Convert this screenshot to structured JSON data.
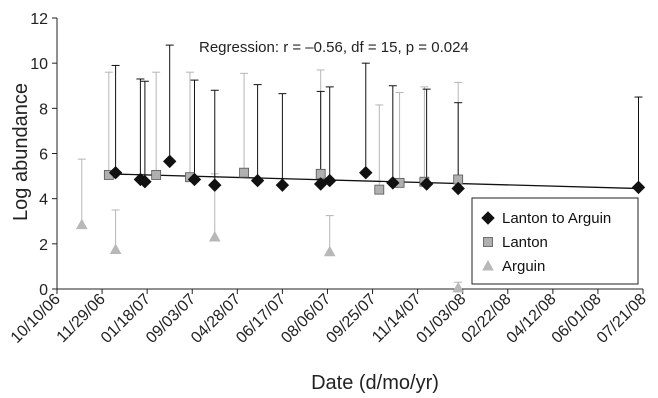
{
  "chart_data": {
    "type": "scatter",
    "title": "",
    "xlabel": "Date (d/mo/yr)",
    "ylabel": "Log abundance",
    "ylim": [
      0,
      12
    ],
    "yticks": [
      "0",
      "2",
      "4",
      "6",
      "8",
      "10",
      "12"
    ],
    "xtick_labels": [
      "10/10/06",
      "11/29/06",
      "01/18/07",
      "09/03/07",
      "04/28/07",
      "06/17/07",
      "08/06/07",
      "09/25/07",
      "11/14/07",
      "01/03/08",
      "02/22/08",
      "04/12/08",
      "06/01/08",
      "07/21/08"
    ],
    "annotation": "Regression: r = –0.56, df = 15, p = 0.024",
    "legend_position": "bottom-right",
    "regression": {
      "x": [
        1.1,
        12.9
      ],
      "y": [
        5.1,
        4.45
      ]
    },
    "series": [
      {
        "name": "Lanton to Arguin",
        "marker": "diamond",
        "color": "#111111",
        "points": [
          {
            "x": 1.3,
            "y": 5.15,
            "upper": 9.9
          },
          {
            "x": 1.85,
            "y": 4.85,
            "upper": 9.3
          },
          {
            "x": 1.95,
            "y": 4.75,
            "upper": 9.2
          },
          {
            "x": 2.5,
            "y": 5.65,
            "upper": 10.8
          },
          {
            "x": 3.05,
            "y": 4.85,
            "upper": 9.25
          },
          {
            "x": 3.5,
            "y": 4.6,
            "upper": 8.8
          },
          {
            "x": 4.45,
            "y": 4.8,
            "upper": 9.05
          },
          {
            "x": 5.0,
            "y": 4.6,
            "upper": 8.65
          },
          {
            "x": 5.85,
            "y": 4.65,
            "upper": 8.75
          },
          {
            "x": 6.05,
            "y": 4.8,
            "upper": 8.95
          },
          {
            "x": 6.85,
            "y": 5.15,
            "upper": 10.0
          },
          {
            "x": 7.45,
            "y": 4.7,
            "upper": 9.0
          },
          {
            "x": 8.2,
            "y": 4.65,
            "upper": 8.85
          },
          {
            "x": 8.9,
            "y": 4.45,
            "upper": 8.25
          },
          {
            "x": 12.9,
            "y": 4.5,
            "upper": 8.5
          }
        ]
      },
      {
        "name": "Lanton",
        "marker": "square",
        "color": "#b0b0b0",
        "points": [
          {
            "x": 1.15,
            "y": 5.05,
            "upper": 9.6
          },
          {
            "x": 2.2,
            "y": 5.05,
            "upper": 9.6
          },
          {
            "x": 2.95,
            "y": 4.95,
            "upper": 9.6
          },
          {
            "x": 4.15,
            "y": 5.15,
            "upper": 9.55
          },
          {
            "x": 5.85,
            "y": 5.1,
            "upper": 9.7
          },
          {
            "x": 7.15,
            "y": 4.4,
            "upper": 8.15
          },
          {
            "x": 7.6,
            "y": 4.7,
            "upper": 8.7
          },
          {
            "x": 8.15,
            "y": 4.75,
            "upper": 8.95
          },
          {
            "x": 8.9,
            "y": 4.85,
            "upper": 9.15
          }
        ]
      },
      {
        "name": "Arguin",
        "marker": "triangle",
        "color": "#b8b8b8",
        "points": [
          {
            "x": 0.55,
            "y": 2.85,
            "upper": 5.75
          },
          {
            "x": 1.3,
            "y": 1.75,
            "upper": 3.5
          },
          {
            "x": 3.5,
            "y": 2.3,
            "upper": 5.1
          },
          {
            "x": 6.05,
            "y": 1.65,
            "upper": 3.25
          },
          {
            "x": 8.9,
            "y": 0.05,
            "upper": 0.3
          }
        ]
      }
    ]
  }
}
